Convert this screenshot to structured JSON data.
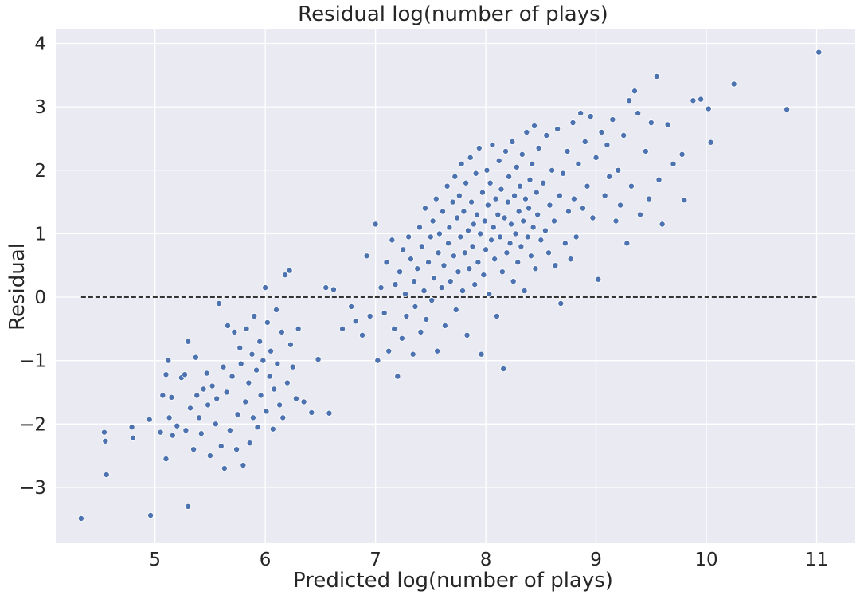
{
  "chart_data": {
    "type": "scatter",
    "title": "Residual log(number of plays)",
    "xlabel": "Predicted log(number of plays)",
    "ylabel": "Residual",
    "xlim": [
      4.1,
      11.35
    ],
    "ylim": [
      -3.88,
      4.22
    ],
    "xticks": [
      5,
      6,
      7,
      8,
      9,
      10,
      11
    ],
    "yticks": [
      -3,
      -2,
      -1,
      0,
      1,
      2,
      3,
      4
    ],
    "xtick_labels": [
      "5",
      "6",
      "7",
      "8",
      "9",
      "10",
      "11"
    ],
    "ytick_labels": [
      "−3",
      "−2",
      "−1",
      "0",
      "1",
      "2",
      "3",
      "4"
    ],
    "grid": true,
    "background": "#eaeaf2",
    "point_color": "#4c72b0",
    "reference_line": {
      "y": 0,
      "x_start": 4.33,
      "x_end": 11.0,
      "style": "dashed",
      "color": "#1a1a1a"
    },
    "series": [
      {
        "values_note": "",
        "points": [
          [
            4.33,
            -3.49
          ],
          [
            4.54,
            -2.13
          ],
          [
            4.55,
            -2.27
          ],
          [
            4.56,
            -2.8
          ],
          [
            4.79,
            -2.05
          ],
          [
            4.8,
            -2.22
          ],
          [
            4.95,
            -1.93
          ],
          [
            4.96,
            -3.44
          ],
          [
            5.05,
            -2.13
          ],
          [
            5.07,
            -1.55
          ],
          [
            5.1,
            -2.55
          ],
          [
            5.1,
            -1.22
          ],
          [
            5.12,
            -1.0
          ],
          [
            5.13,
            -1.9
          ],
          [
            5.15,
            -1.58
          ],
          [
            5.16,
            -2.18
          ],
          [
            5.2,
            -2.03
          ],
          [
            5.24,
            -1.27
          ],
          [
            5.27,
            -1.22
          ],
          [
            5.28,
            -2.1
          ],
          [
            5.3,
            -3.3
          ],
          [
            5.3,
            -0.7
          ],
          [
            5.32,
            -1.75
          ],
          [
            5.35,
            -2.4
          ],
          [
            5.37,
            -0.95
          ],
          [
            5.38,
            -1.55
          ],
          [
            5.4,
            -1.9
          ],
          [
            5.42,
            -2.15
          ],
          [
            5.44,
            -1.45
          ],
          [
            5.47,
            -1.2
          ],
          [
            5.48,
            -1.7
          ],
          [
            5.5,
            -2.5
          ],
          [
            5.52,
            -1.4
          ],
          [
            5.55,
            -2.0
          ],
          [
            5.56,
            -1.6
          ],
          [
            5.58,
            -0.1
          ],
          [
            5.6,
            -2.35
          ],
          [
            5.62,
            -1.1
          ],
          [
            5.63,
            -2.7
          ],
          [
            5.65,
            -1.5
          ],
          [
            5.66,
            -0.45
          ],
          [
            5.68,
            -2.1
          ],
          [
            5.7,
            -1.25
          ],
          [
            5.72,
            -0.55
          ],
          [
            5.74,
            -2.4
          ],
          [
            5.75,
            -1.85
          ],
          [
            5.77,
            -0.8
          ],
          [
            5.78,
            -1.05
          ],
          [
            5.8,
            -2.65
          ],
          [
            5.82,
            -1.65
          ],
          [
            5.83,
            -0.5
          ],
          [
            5.85,
            -1.35
          ],
          [
            5.86,
            -2.3
          ],
          [
            5.88,
            -0.9
          ],
          [
            5.89,
            -1.9
          ],
          [
            5.9,
            -0.3
          ],
          [
            5.92,
            -1.15
          ],
          [
            5.93,
            -2.05
          ],
          [
            5.95,
            -0.7
          ],
          [
            5.96,
            -1.55
          ],
          [
            5.98,
            -1.0
          ],
          [
            6.0,
            0.15
          ],
          [
            6.01,
            -1.8
          ],
          [
            6.02,
            -0.4
          ],
          [
            6.04,
            -1.25
          ],
          [
            6.05,
            -0.85
          ],
          [
            6.07,
            -2.08
          ],
          [
            6.08,
            -1.45
          ],
          [
            6.1,
            -0.2
          ],
          [
            6.11,
            -1.05
          ],
          [
            6.13,
            -1.7
          ],
          [
            6.15,
            -0.55
          ],
          [
            6.16,
            -1.9
          ],
          [
            6.18,
            0.35
          ],
          [
            6.2,
            -1.35
          ],
          [
            6.22,
            0.42
          ],
          [
            6.23,
            -0.75
          ],
          [
            6.25,
            -1.1
          ],
          [
            6.28,
            -1.6
          ],
          [
            6.3,
            -0.5
          ],
          [
            6.35,
            -1.65
          ],
          [
            6.42,
            -1.82
          ],
          [
            6.48,
            -0.98
          ],
          [
            6.55,
            0.15
          ],
          [
            6.58,
            -1.83
          ],
          [
            6.62,
            0.12
          ],
          [
            6.7,
            -0.5
          ],
          [
            6.78,
            -0.15
          ],
          [
            6.82,
            -0.38
          ],
          [
            6.88,
            -0.6
          ],
          [
            6.92,
            0.65
          ],
          [
            6.95,
            -0.3
          ],
          [
            7.0,
            1.15
          ],
          [
            7.02,
            -1.0
          ],
          [
            7.05,
            0.15
          ],
          [
            7.08,
            -0.25
          ],
          [
            7.1,
            0.55
          ],
          [
            7.12,
            -0.85
          ],
          [
            7.15,
            0.9
          ],
          [
            7.17,
            -0.5
          ],
          [
            7.18,
            0.2
          ],
          [
            7.2,
            -1.25
          ],
          [
            7.22,
            0.4
          ],
          [
            7.24,
            -0.65
          ],
          [
            7.25,
            0.75
          ],
          [
            7.27,
            0.05
          ],
          [
            7.28,
            -0.3
          ],
          [
            7.3,
            0.95
          ],
          [
            7.32,
            0.6
          ],
          [
            7.34,
            -0.9
          ],
          [
            7.35,
            0.25
          ],
          [
            7.36,
            -0.15
          ],
          [
            7.38,
            0.45
          ],
          [
            7.4,
            1.1
          ],
          [
            7.41,
            -0.55
          ],
          [
            7.42,
            0.8
          ],
          [
            7.44,
            0.1
          ],
          [
            7.45,
            1.4
          ],
          [
            7.46,
            -0.35
          ],
          [
            7.48,
            0.55
          ],
          [
            7.5,
            0.95
          ],
          [
            7.51,
            -0.05
          ],
          [
            7.52,
            1.2
          ],
          [
            7.53,
            0.3
          ],
          [
            7.55,
            1.55
          ],
          [
            7.56,
            -0.85
          ],
          [
            7.57,
            0.7
          ],
          [
            7.58,
            1.0
          ],
          [
            7.6,
            0.15
          ],
          [
            7.61,
            1.35
          ],
          [
            7.62,
            0.5
          ],
          [
            7.63,
            -0.45
          ],
          [
            7.65,
            1.75
          ],
          [
            7.66,
            0.85
          ],
          [
            7.67,
            1.1
          ],
          [
            7.68,
            0.25
          ],
          [
            7.7,
            1.5
          ],
          [
            7.71,
            0.65
          ],
          [
            7.72,
            1.9
          ],
          [
            7.73,
            -0.2
          ],
          [
            7.74,
            1.25
          ],
          [
            7.75,
            0.4
          ],
          [
            7.76,
            1.6
          ],
          [
            7.77,
            0.95
          ],
          [
            7.78,
            2.1
          ],
          [
            7.79,
            0.1
          ],
          [
            7.8,
            1.35
          ],
          [
            7.81,
            0.7
          ],
          [
            7.82,
            1.8
          ],
          [
            7.83,
            -0.6
          ],
          [
            7.84,
            1.05
          ],
          [
            7.85,
            0.45
          ],
          [
            7.86,
            2.2
          ],
          [
            7.87,
            1.5
          ],
          [
            7.88,
            0.8
          ],
          [
            7.89,
            1.15
          ],
          [
            7.9,
            0.2
          ],
          [
            7.91,
            1.95
          ],
          [
            7.92,
            1.3
          ],
          [
            7.93,
            0.55
          ],
          [
            7.94,
            2.35
          ],
          [
            7.95,
            1.0
          ],
          [
            7.96,
            -0.9
          ],
          [
            7.97,
            1.65
          ],
          [
            7.98,
            0.35
          ],
          [
            7.99,
            1.2
          ],
          [
            8.0,
            0.75
          ],
          [
            8.01,
            2.0
          ],
          [
            8.02,
            1.45
          ],
          [
            8.03,
            0.05
          ],
          [
            8.04,
            1.8
          ],
          [
            8.05,
            0.9
          ],
          [
            8.06,
            2.4
          ],
          [
            8.07,
            1.1
          ],
          [
            8.08,
            0.6
          ],
          [
            8.09,
            1.55
          ],
          [
            8.1,
            -0.3
          ],
          [
            8.11,
            1.3
          ],
          [
            8.12,
            2.15
          ],
          [
            8.13,
            0.95
          ],
          [
            8.14,
            1.7
          ],
          [
            8.15,
            0.4
          ],
          [
            8.16,
            -1.13
          ],
          [
            8.17,
            1.25
          ],
          [
            8.18,
            2.3
          ],
          [
            8.19,
            0.7
          ],
          [
            8.2,
            1.5
          ],
          [
            8.21,
            1.9
          ],
          [
            8.22,
            0.85
          ],
          [
            8.23,
            1.15
          ],
          [
            8.24,
            2.45
          ],
          [
            8.25,
            0.25
          ],
          [
            8.26,
            1.6
          ],
          [
            8.27,
            1.0
          ],
          [
            8.28,
            2.05
          ],
          [
            8.29,
            0.55
          ],
          [
            8.3,
            1.35
          ],
          [
            8.31,
            1.75
          ],
          [
            8.32,
            0.8
          ],
          [
            8.33,
            2.25
          ],
          [
            8.34,
            1.2
          ],
          [
            8.35,
            0.1
          ],
          [
            8.36,
            1.55
          ],
          [
            8.37,
            2.6
          ],
          [
            8.38,
            0.95
          ],
          [
            8.39,
            1.4
          ],
          [
            8.4,
            1.85
          ],
          [
            8.41,
            0.65
          ],
          [
            8.42,
            2.1
          ],
          [
            8.43,
            1.1
          ],
          [
            8.44,
            2.7
          ],
          [
            8.45,
            0.45
          ],
          [
            8.46,
            1.65
          ],
          [
            8.47,
            1.3
          ],
          [
            8.48,
            2.35
          ],
          [
            8.5,
            0.9
          ],
          [
            8.52,
            1.8
          ],
          [
            8.54,
            1.05
          ],
          [
            8.55,
            2.55
          ],
          [
            8.57,
            0.7
          ],
          [
            8.58,
            1.45
          ],
          [
            8.6,
            2.0
          ],
          [
            8.62,
            1.2
          ],
          [
            8.63,
            0.5
          ],
          [
            8.65,
            2.65
          ],
          [
            8.67,
            1.6
          ],
          [
            8.68,
            -0.1
          ],
          [
            8.7,
            1.95
          ],
          [
            8.72,
            0.85
          ],
          [
            8.74,
            2.3
          ],
          [
            8.75,
            1.35
          ],
          [
            8.77,
            0.6
          ],
          [
            8.79,
            2.75
          ],
          [
            8.8,
            1.55
          ],
          [
            8.82,
            0.95
          ],
          [
            8.84,
            2.1
          ],
          [
            8.86,
            2.9
          ],
          [
            8.88,
            1.4
          ],
          [
            8.9,
            2.45
          ],
          [
            8.92,
            1.75
          ],
          [
            8.95,
            2.85
          ],
          [
            8.97,
            1.25
          ],
          [
            9.0,
            2.2
          ],
          [
            9.02,
            0.28
          ],
          [
            9.05,
            2.6
          ],
          [
            9.08,
            1.6
          ],
          [
            9.1,
            2.4
          ],
          [
            9.12,
            1.9
          ],
          [
            9.15,
            2.8
          ],
          [
            9.18,
            1.2
          ],
          [
            9.2,
            2.0
          ],
          [
            9.22,
            1.45
          ],
          [
            9.25,
            2.55
          ],
          [
            9.28,
            0.85
          ],
          [
            9.3,
            3.1
          ],
          [
            9.32,
            1.75
          ],
          [
            9.35,
            3.25
          ],
          [
            9.38,
            2.9
          ],
          [
            9.4,
            1.3
          ],
          [
            9.45,
            2.3
          ],
          [
            9.48,
            1.55
          ],
          [
            9.5,
            2.75
          ],
          [
            9.55,
            3.48
          ],
          [
            9.57,
            1.85
          ],
          [
            9.6,
            1.15
          ],
          [
            9.65,
            2.72
          ],
          [
            9.7,
            2.1
          ],
          [
            9.78,
            2.25
          ],
          [
            9.8,
            1.53
          ],
          [
            9.88,
            3.1
          ],
          [
            9.95,
            3.12
          ],
          [
            10.02,
            2.97
          ],
          [
            10.04,
            2.44
          ],
          [
            10.25,
            3.36
          ],
          [
            10.73,
            2.96
          ],
          [
            11.02,
            3.86
          ]
        ]
      }
    ]
  }
}
